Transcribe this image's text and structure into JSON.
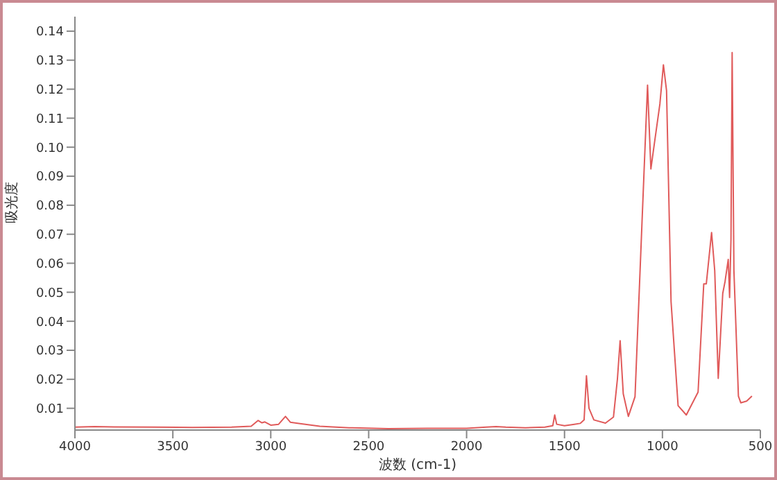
{
  "chart_data": {
    "type": "line",
    "xlabel": "波数 (cm-1)",
    "ylabel": "吸光度",
    "x": [
      4000,
      3900,
      3800,
      3600,
      3400,
      3200,
      3100,
      3065,
      3045,
      3030,
      3000,
      2960,
      2925,
      2900,
      2850,
      2750,
      2600,
      2400,
      2200,
      2000,
      1900,
      1850,
      1800,
      1700,
      1600,
      1560,
      1550,
      1540,
      1500,
      1450,
      1420,
      1400,
      1388,
      1375,
      1350,
      1291,
      1250,
      1230,
      1216,
      1200,
      1174,
      1140,
      1105,
      1076,
      1059,
      1043,
      1013,
      995,
      979,
      956,
      920,
      878,
      818,
      789,
      776,
      749,
      733,
      715,
      692,
      680,
      664,
      657,
      650,
      644,
      635,
      612,
      600,
      570,
      543
    ],
    "series": [
      {
        "color": "#e05a5a",
        "values": [
          0.0035,
          0.0037,
          0.0036,
          0.0035,
          0.0034,
          0.0035,
          0.0038,
          0.0058,
          0.005,
          0.0053,
          0.0042,
          0.0045,
          0.0072,
          0.0052,
          0.0047,
          0.0038,
          0.0033,
          0.003,
          0.0031,
          0.0031,
          0.0035,
          0.0037,
          0.0035,
          0.0033,
          0.0035,
          0.004,
          0.0077,
          0.0045,
          0.004,
          0.0045,
          0.0048,
          0.006,
          0.0212,
          0.01,
          0.006,
          0.0049,
          0.007,
          0.02,
          0.0333,
          0.015,
          0.0072,
          0.014,
          0.0729,
          0.1214,
          0.0925,
          0.1004,
          0.1149,
          0.1284,
          0.1195,
          0.0468,
          0.0109,
          0.0077,
          0.0156,
          0.0529,
          0.0529,
          0.0706,
          0.0575,
          0.0203,
          0.0496,
          0.0538,
          0.0613,
          0.0482,
          0.0682,
          0.1326,
          0.0575,
          0.0142,
          0.0119,
          0.0125,
          0.0142
        ]
      }
    ],
    "xlim": [
      4000,
      500
    ],
    "xticks": [
      4000,
      3500,
      3000,
      2500,
      2000,
      1500,
      1000,
      500
    ],
    "ylim": [
      0.0025,
      0.145
    ],
    "yticks": [
      {
        "value": 0.01,
        "label": "0.01"
      },
      {
        "value": 0.02,
        "label": "0.02"
      },
      {
        "value": 0.03,
        "label": "0.03"
      },
      {
        "value": 0.04,
        "label": "0.04"
      },
      {
        "value": 0.05,
        "label": "0.05"
      },
      {
        "value": 0.06,
        "label": "0.06"
      },
      {
        "value": 0.07,
        "label": "0.07"
      },
      {
        "value": 0.08,
        "label": "0.08"
      },
      {
        "value": 0.09,
        "label": "0.09"
      },
      {
        "value": 0.1,
        "label": "0.10"
      },
      {
        "value": 0.11,
        "label": "0.11"
      },
      {
        "value": 0.12,
        "label": "0.12"
      },
      {
        "value": 0.13,
        "label": "0.13"
      },
      {
        "value": 0.14,
        "label": "0.14"
      }
    ]
  }
}
